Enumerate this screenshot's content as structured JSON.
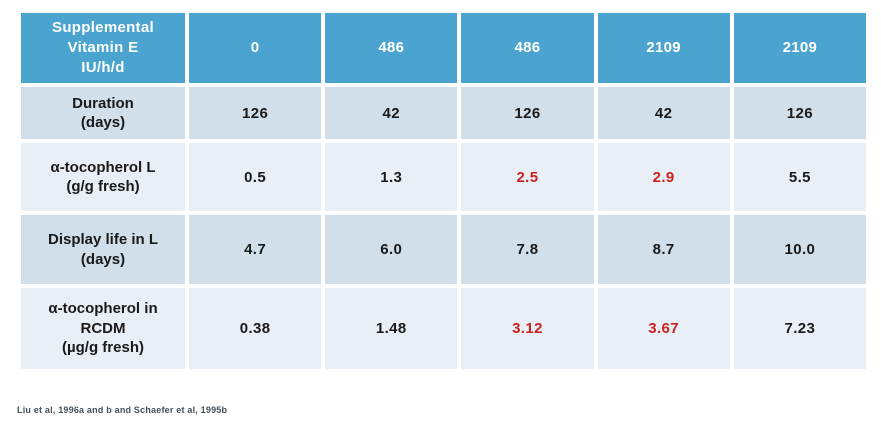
{
  "colors": {
    "header-blue": "#4BA4D0",
    "header-text": "#FFFFFF",
    "row-dark": "#D0DFEA",
    "row-light": "#E9EFF6",
    "text-dark": "#1A1A1A",
    "accent-red": "#C9221F",
    "footer-text": "#44505C"
  },
  "table": {
    "header": {
      "label": "Supplemental\nVitamin E\nIU/h/d",
      "columns": [
        "0",
        "486",
        "486",
        "2109",
        "2109"
      ]
    },
    "rows": [
      {
        "label": "Duration\n(days)",
        "values": [
          "126",
          "42",
          "126",
          "42",
          "126"
        ],
        "highlight_indices": []
      },
      {
        "label": "α-tocopherol L\n(g/g fresh)",
        "values": [
          "0.5",
          "1.3",
          "2.5",
          "2.9",
          "5.5"
        ],
        "highlight_indices": [
          2,
          3
        ]
      },
      {
        "label": "Display life in L\n(days)",
        "values": [
          "4.7",
          "6.0",
          "7.8",
          "8.7",
          "10.0"
        ],
        "highlight_indices": []
      },
      {
        "label": "α-tocopherol in\nRCDM\n(µg/g fresh)",
        "values": [
          "0.38",
          "1.48",
          "3.12",
          "3.67",
          "7.23"
        ],
        "highlight_indices": [
          2,
          3
        ]
      }
    ]
  },
  "footer": {
    "citation": "Liu et al, 1996a and b and Schaefer et al, 1995b"
  },
  "chart_data": {
    "type": "table",
    "columns": [
      "Supplemental Vitamin E IU/h/d",
      "0",
      "486",
      "486",
      "2109",
      "2109"
    ],
    "rows": [
      [
        "Duration (days)",
        126,
        42,
        126,
        42,
        126
      ],
      [
        "α-tocopherol L (g/g fresh)",
        0.5,
        1.3,
        2.5,
        2.9,
        5.5
      ],
      [
        "Display life in L (days)",
        4.7,
        6.0,
        7.8,
        8.7,
        10.0
      ],
      [
        "α-tocopherol in RCDM (µg/g fresh)",
        0.38,
        1.48,
        3.12,
        3.67,
        7.23
      ]
    ],
    "highlighted_red_cells": [
      [
        1,
        2
      ],
      [
        1,
        3
      ],
      [
        3,
        2
      ],
      [
        3,
        3
      ]
    ],
    "title": "",
    "citation": "Liu et al, 1996a and b and Schaefer et al, 1995b"
  }
}
